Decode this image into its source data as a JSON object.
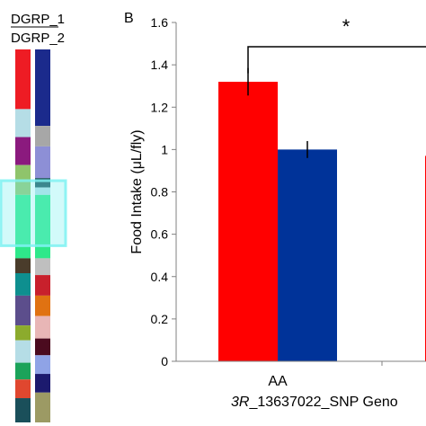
{
  "panel_label": "B",
  "legend": {
    "dgrp1": "DGRP_1",
    "dgrp2": "DGRP_2"
  },
  "chromosome_bars": {
    "column_1": [
      {
        "from": 0.0,
        "to": 0.16,
        "color": "#ee1c24"
      },
      {
        "from": 0.16,
        "to": 0.235,
        "color": "#b5dde6"
      },
      {
        "from": 0.235,
        "to": 0.31,
        "color": "#8b1a7e"
      },
      {
        "from": 0.31,
        "to": 0.39,
        "color": "#8fc46b"
      },
      {
        "from": 0.39,
        "to": 0.56,
        "color": "#2ee88a"
      },
      {
        "from": 0.56,
        "to": 0.6,
        "color": "#4a3c2b"
      },
      {
        "from": 0.6,
        "to": 0.66,
        "color": "#0e8f8f"
      },
      {
        "from": 0.66,
        "to": 0.74,
        "color": "#5c4e8c"
      },
      {
        "from": 0.74,
        "to": 0.78,
        "color": "#8cab2d"
      },
      {
        "from": 0.78,
        "to": 0.84,
        "color": "#b5dde6"
      },
      {
        "from": 0.84,
        "to": 0.885,
        "color": "#1ba35a"
      },
      {
        "from": 0.885,
        "to": 0.935,
        "color": "#e0472f"
      },
      {
        "from": 0.935,
        "to": 1.0,
        "color": "#1a4f5a"
      }
    ],
    "column_2": [
      {
        "from": 0.0,
        "to": 0.205,
        "color": "#1b2a8c"
      },
      {
        "from": 0.205,
        "to": 0.26,
        "color": "#a7a7a7"
      },
      {
        "from": 0.26,
        "to": 0.345,
        "color": "#8d8fd6"
      },
      {
        "from": 0.345,
        "to": 0.37,
        "color": "#1a4f5a"
      },
      {
        "from": 0.37,
        "to": 0.39,
        "color": "#b5dde6"
      },
      {
        "from": 0.39,
        "to": 0.56,
        "color": "#2ee88a"
      },
      {
        "from": 0.56,
        "to": 0.605,
        "color": "#bfbfbf"
      },
      {
        "from": 0.605,
        "to": 0.66,
        "color": "#c8202c"
      },
      {
        "from": 0.66,
        "to": 0.715,
        "color": "#e07212"
      },
      {
        "from": 0.715,
        "to": 0.775,
        "color": "#e8b6b6"
      },
      {
        "from": 0.775,
        "to": 0.82,
        "color": "#4b0b1f"
      },
      {
        "from": 0.82,
        "to": 0.87,
        "color": "#8fa3e6"
      },
      {
        "from": 0.87,
        "to": 0.92,
        "color": "#1c1a6e"
      },
      {
        "from": 0.92,
        "to": 1.0,
        "color": "#9c9a64"
      }
    ],
    "highlight_band": {
      "from": 0.4,
      "to": 0.56,
      "color": "#7ff2f2"
    }
  },
  "chart_data": {
    "type": "bar",
    "ylabel": "Food Intake (μL/fly)",
    "ylim": [
      0,
      1.6
    ],
    "yticks": [
      "0",
      "0.2",
      "0.4",
      "0.6",
      "0.8",
      "1",
      "1.2",
      "1.4",
      "1.6"
    ],
    "categories": [
      "AA"
    ],
    "xlabel_italic": "3R",
    "xlabel_rest": "_13637022_SNP Geno",
    "series": [
      {
        "values": [
          1.32
        ],
        "errors": [
          0.065
        ],
        "color": "#ff0000"
      },
      {
        "values": [
          1.0
        ],
        "errors": [
          0.04
        ],
        "color": "#003399"
      }
    ],
    "partial_bar": {
      "value": 0.97,
      "color": "#ff0000"
    },
    "significance": "*"
  }
}
